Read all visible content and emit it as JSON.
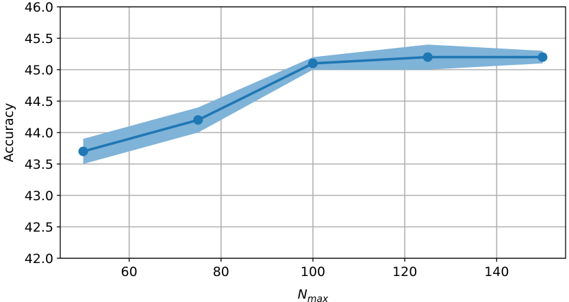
{
  "chart_data": {
    "type": "line",
    "title": "",
    "xlabel": "N",
    "xlabel_subscript": "max",
    "ylabel": "Accuracy",
    "xlim": [
      45,
      155
    ],
    "ylim": [
      42.0,
      46.0
    ],
    "xticks": [
      60,
      80,
      100,
      120,
      140
    ],
    "yticks": [
      42.0,
      42.5,
      43.0,
      43.5,
      44.0,
      44.5,
      45.0,
      45.5,
      46.0
    ],
    "grid": true,
    "x": [
      50,
      75,
      100,
      125,
      150
    ],
    "series": [
      {
        "values": [
          43.7,
          44.2,
          45.1,
          45.2,
          45.2
        ],
        "lower": [
          43.5,
          44.0,
          45.0,
          45.0,
          45.1
        ],
        "upper": [
          43.9,
          44.4,
          45.2,
          45.4,
          45.3
        ],
        "color": "#1f77b4",
        "band_color": "#7fb3d8"
      }
    ]
  }
}
